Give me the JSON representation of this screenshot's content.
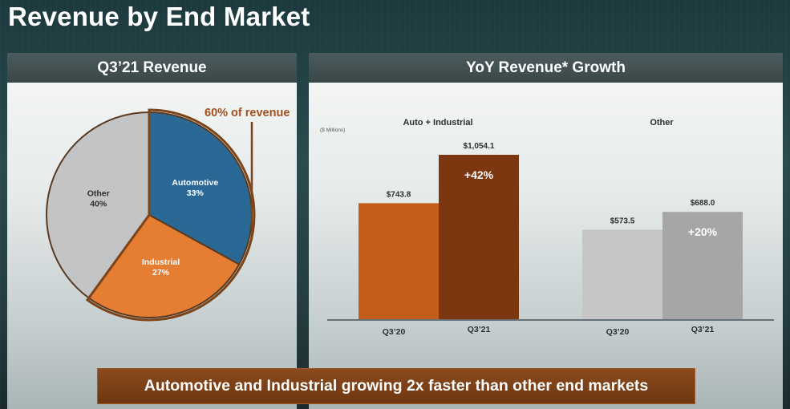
{
  "title": "Revenue by End Market",
  "pie": {
    "header": "Q3’21 Revenue",
    "callout": "60% of revenue"
  },
  "bars": {
    "header": "YoY Revenue* Growth",
    "units": "($ Millions)",
    "groups": [
      "Auto + Industrial",
      "Other"
    ]
  },
  "banner": "Automotive and Industrial growing 2x faster than other end markets",
  "colors": {
    "automotive": "#2a6896",
    "industrial": "#e57d33",
    "other": "#c2c4c6",
    "bar_a_q320": "#c35d19",
    "bar_a_q321": "#7c3610",
    "bar_o_q320": "#c6c6c6",
    "bar_o_q321": "#a6a6a6",
    "callout_border": "#7c4418"
  },
  "chart_data": [
    {
      "type": "pie",
      "title": "Q3’21 Revenue",
      "slices": [
        {
          "label": "Automotive",
          "value": 33,
          "value_label": "33%"
        },
        {
          "label": "Industrial",
          "value": 27,
          "value_label": "27%"
        },
        {
          "label": "Other",
          "value": 40,
          "value_label": "40%"
        }
      ],
      "annotation": "60% of revenue"
    },
    {
      "type": "bar",
      "title": "YoY Revenue* Growth",
      "ylabel": "($ Millions)",
      "groups": [
        {
          "name": "Auto + Industrial",
          "bars": [
            {
              "category": "Q3’20",
              "value": 743.8,
              "label": "$743.8"
            },
            {
              "category": "Q3’21",
              "value": 1054.1,
              "label": "$1,054.1"
            }
          ],
          "growth_label": "+42%"
        },
        {
          "name": "Other",
          "bars": [
            {
              "category": "Q3’20",
              "value": 573.5,
              "label": "$573.5"
            },
            {
              "category": "Q3’21",
              "value": 688.0,
              "label": "$688.0"
            }
          ],
          "growth_label": "+20%"
        }
      ]
    }
  ]
}
